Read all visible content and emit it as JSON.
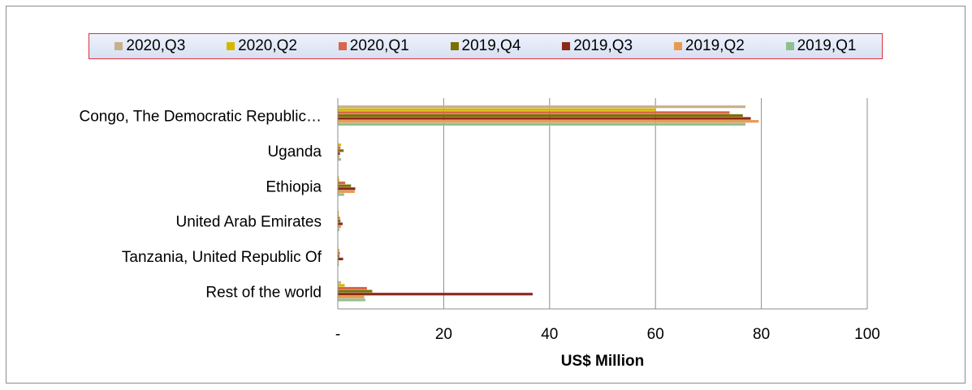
{
  "chart_data": {
    "type": "bar",
    "orientation": "horizontal",
    "categories": [
      "Congo, The Democratic Republic…",
      "Uganda",
      "Ethiopia",
      "United Arab Emirates",
      "Tanzania, United Republic Of",
      "Rest of the world"
    ],
    "series": [
      {
        "name": "2020,Q3",
        "color": "#c8b08a",
        "values": [
          77,
          0.1,
          0.2,
          0.2,
          0.1,
          0.6
        ]
      },
      {
        "name": "2020,Q2",
        "color": "#d4b800",
        "values": [
          60,
          0.6,
          0.3,
          0.2,
          0.3,
          1.3
        ]
      },
      {
        "name": "2020,Q1",
        "color": "#d9654a",
        "values": [
          74,
          0.5,
          1.4,
          0.4,
          0.4,
          5.5
        ]
      },
      {
        "name": "2019,Q4",
        "color": "#7a6f00",
        "values": [
          76.5,
          1.1,
          2.5,
          0.5,
          0.3,
          6.5
        ]
      },
      {
        "name": "2019,Q3",
        "color": "#8b2a1a",
        "values": [
          78,
          0.4,
          3.3,
          0.9,
          1.0,
          36.8
        ]
      },
      {
        "name": "2019,Q2",
        "color": "#e89a50",
        "values": [
          79.5,
          0.3,
          3.2,
          0.6,
          0.2,
          5.0
        ]
      },
      {
        "name": "2019,Q1",
        "color": "#8fbf8f",
        "values": [
          77,
          0.6,
          1.2,
          0.3,
          0.2,
          5.2
        ]
      }
    ],
    "xlabel": "US$ Million",
    "xlim": [
      0,
      100
    ],
    "xticks": [
      "-",
      "20",
      "40",
      "60",
      "80",
      "100"
    ],
    "grid": true,
    "legend_position": "top"
  }
}
